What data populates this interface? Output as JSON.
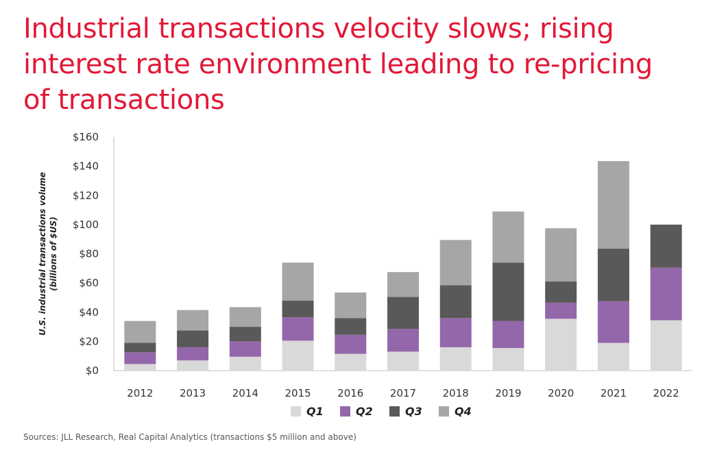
{
  "title": "Industrial transactions velocity slows; rising interest rate environment leading to re-pricing of transactions",
  "source": "Sources: JLL Research, Real Capital Analytics (transactions $5 million and above)",
  "chart_data": {
    "type": "bar",
    "stacked": true,
    "title": "Industrial transactions velocity slows; rising interest rate environment leading to re-pricing of transactions",
    "ylabel_line1": "U.S. industrial transactions volume",
    "ylabel_line2": "(billions of $US)",
    "xlabel": "",
    "ylim": [
      0,
      160
    ],
    "yticks": [
      0,
      20,
      40,
      60,
      80,
      100,
      120,
      140,
      160
    ],
    "ytick_labels": [
      "$0",
      "$20",
      "$40",
      "$60",
      "$80",
      "$100",
      "$120",
      "$140",
      "$160"
    ],
    "categories": [
      "2012",
      "2013",
      "2014",
      "2015",
      "2016",
      "2017",
      "2018",
      "2019",
      "2020",
      "2021",
      "2022"
    ],
    "series": [
      {
        "name": "Q1",
        "color": "#d9d9d9",
        "values": [
          4.5,
          7,
          9.5,
          20.5,
          11.5,
          13,
          16,
          15.5,
          35.5,
          19,
          34.5
        ]
      },
      {
        "name": "Q2",
        "color": "#9467aa",
        "values": [
          8,
          9,
          10.5,
          16,
          13,
          15.5,
          20,
          18.5,
          11,
          28.5,
          36
        ]
      },
      {
        "name": "Q3",
        "color": "#595959",
        "values": [
          6.5,
          11.5,
          10,
          11.5,
          11.5,
          22,
          22.5,
          40,
          14.5,
          36,
          29.5
        ]
      },
      {
        "name": "Q4",
        "color": "#a6a6a6",
        "values": [
          15,
          14,
          13.5,
          26,
          17.5,
          17,
          31,
          35,
          36.5,
          60,
          0
        ]
      }
    ],
    "grid": false,
    "legend_position": "bottom"
  }
}
